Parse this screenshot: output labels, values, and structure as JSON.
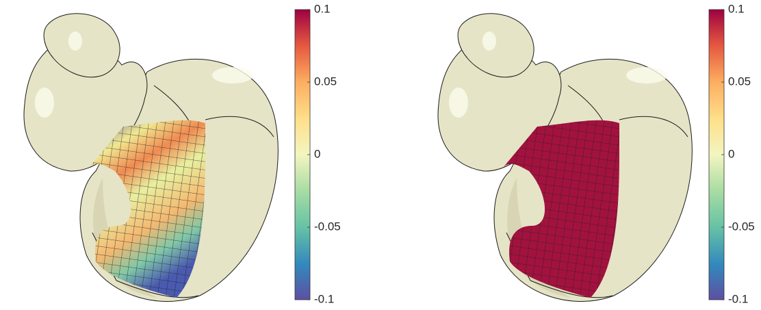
{
  "panels": [
    {
      "colorbar": {
        "lim": [
          -0.1,
          0.1
        ],
        "ticks": [
          -0.1,
          -0.05,
          0,
          0.05,
          0.1
        ]
      }
    },
    {
      "colorbar": {
        "lim": [
          -0.1,
          0.1
        ],
        "ticks": [
          -0.1,
          -0.05,
          0,
          0.05,
          0.1
        ]
      }
    }
  ]
}
